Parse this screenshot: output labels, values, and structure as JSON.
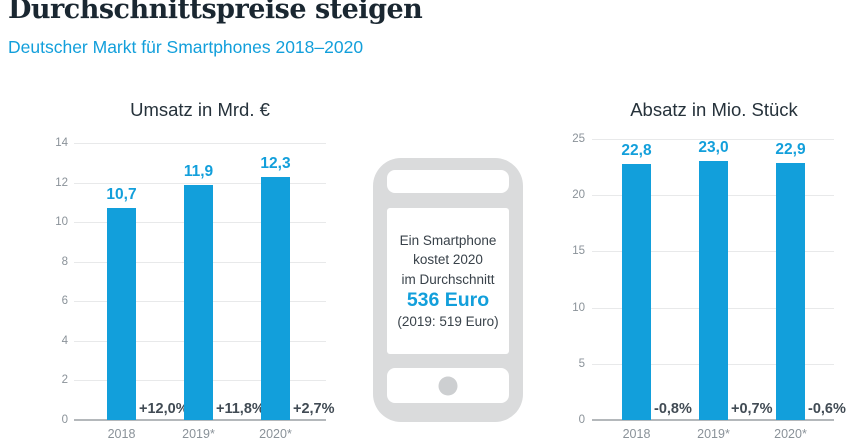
{
  "header": {
    "title": "Durchschnittspreise steigen",
    "subtitle": "Deutscher Markt für Smartphones 2018–2020"
  },
  "chart_data": [
    {
      "type": "bar",
      "title": "Umsatz in Mrd. €",
      "categories": [
        "2018",
        "2019*",
        "2020*"
      ],
      "values": [
        10.7,
        11.9,
        12.3
      ],
      "value_labels": [
        "10,7",
        "11,9",
        "12,3"
      ],
      "change_labels": [
        "+12,0%",
        "+11,8%",
        "+2,7%"
      ],
      "ylim": [
        0,
        14
      ],
      "yticks": [
        0,
        2,
        4,
        6,
        8,
        10,
        12,
        14
      ],
      "grid": true,
      "legend": false
    },
    {
      "type": "bar",
      "title": "Absatz in Mio. Stück",
      "categories": [
        "2018",
        "2019*",
        "2020*"
      ],
      "values": [
        22.8,
        23.0,
        22.9
      ],
      "value_labels": [
        "22,8",
        "23,0",
        "22,9"
      ],
      "change_labels": [
        "-0,8%",
        "+0,7%",
        "-0,6%"
      ],
      "ylim": [
        0,
        25
      ],
      "yticks": [
        0,
        5,
        10,
        15,
        20,
        25
      ],
      "grid": true,
      "legend": false
    }
  ],
  "phone": {
    "line1": "Ein Smartphone",
    "line2": "kostet 2020",
    "line3": "im Durchschnitt",
    "price": "536 Euro",
    "previous": "(2019: 519 Euro)"
  },
  "colors": {
    "accent_blue": "#129FDB",
    "title_dark": "#1A2731",
    "chart_title": "#26323B",
    "percent_dark": "#414B54",
    "axis_gray": "#8A9299",
    "grid_light": "#E8E9EA",
    "baseline_gray": "#B4B8BB",
    "phone_gray": "#DADBDC"
  }
}
